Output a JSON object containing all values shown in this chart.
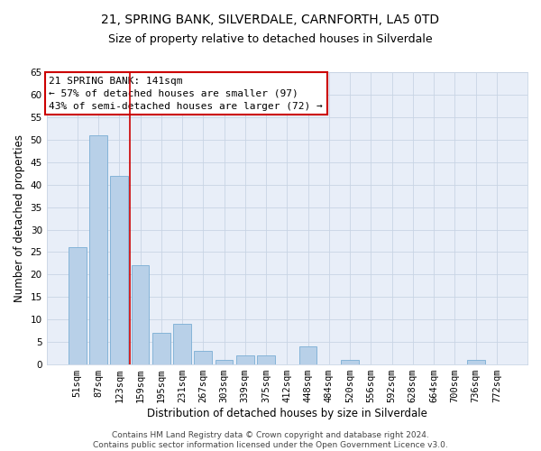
{
  "title": "21, SPRING BANK, SILVERDALE, CARNFORTH, LA5 0TD",
  "subtitle": "Size of property relative to detached houses in Silverdale",
  "xlabel": "Distribution of detached houses by size in Silverdale",
  "ylabel": "Number of detached properties",
  "categories": [
    "51sqm",
    "87sqm",
    "123sqm",
    "159sqm",
    "195sqm",
    "231sqm",
    "267sqm",
    "303sqm",
    "339sqm",
    "375sqm",
    "412sqm",
    "448sqm",
    "484sqm",
    "520sqm",
    "556sqm",
    "592sqm",
    "628sqm",
    "664sqm",
    "700sqm",
    "736sqm",
    "772sqm"
  ],
  "values": [
    26,
    51,
    42,
    22,
    7,
    9,
    3,
    1,
    2,
    2,
    0,
    4,
    0,
    1,
    0,
    0,
    0,
    0,
    0,
    1,
    0
  ],
  "bar_color": "#b8d0e8",
  "bar_edge_color": "#7aaed4",
  "grid_color": "#c8d4e4",
  "background_color": "#e8eef8",
  "vline_x": 2.5,
  "vline_color": "#cc0000",
  "annotation_text": "21 SPRING BANK: 141sqm\n← 57% of detached houses are smaller (97)\n43% of semi-detached houses are larger (72) →",
  "annotation_box_facecolor": "#ffffff",
  "annotation_box_edgecolor": "#cc0000",
  "ylim": [
    0,
    65
  ],
  "yticks": [
    0,
    5,
    10,
    15,
    20,
    25,
    30,
    35,
    40,
    45,
    50,
    55,
    60,
    65
  ],
  "footer": "Contains HM Land Registry data © Crown copyright and database right 2024.\nContains public sector information licensed under the Open Government Licence v3.0.",
  "title_fontsize": 10,
  "subtitle_fontsize": 9,
  "axis_label_fontsize": 8.5,
  "tick_fontsize": 7.5,
  "annotation_fontsize": 8,
  "footer_fontsize": 6.5
}
